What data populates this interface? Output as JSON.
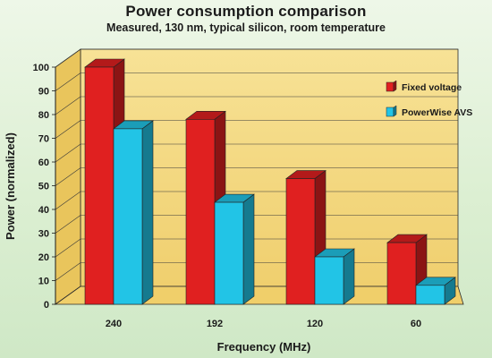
{
  "chart_data": {
    "type": "bar",
    "title": "Power consumption comparison",
    "subtitle": "Measured, 130 nm, typical silicon, room temperature",
    "xlabel": "Frequency (MHz)",
    "ylabel": "Power (normalized)",
    "categories": [
      "240",
      "192",
      "120",
      "60"
    ],
    "ylim": [
      0,
      100
    ],
    "yticks": [
      0,
      10,
      20,
      30,
      40,
      50,
      60,
      70,
      80,
      90,
      100
    ],
    "grid": true,
    "legend_position": "top-right",
    "series": [
      {
        "name": "Fixed voltage",
        "values": [
          100,
          78,
          53,
          26
        ],
        "color": "#e02020"
      },
      {
        "name": "PowerWise AVS",
        "values": [
          74,
          43,
          20,
          8
        ],
        "color": "#22c4e6"
      }
    ]
  },
  "colors": {
    "plot_back": "#f3d77a",
    "plot_floor": "#f0cf6a",
    "plot_side": "#e9c55c",
    "grid": "#3a3a3a"
  }
}
